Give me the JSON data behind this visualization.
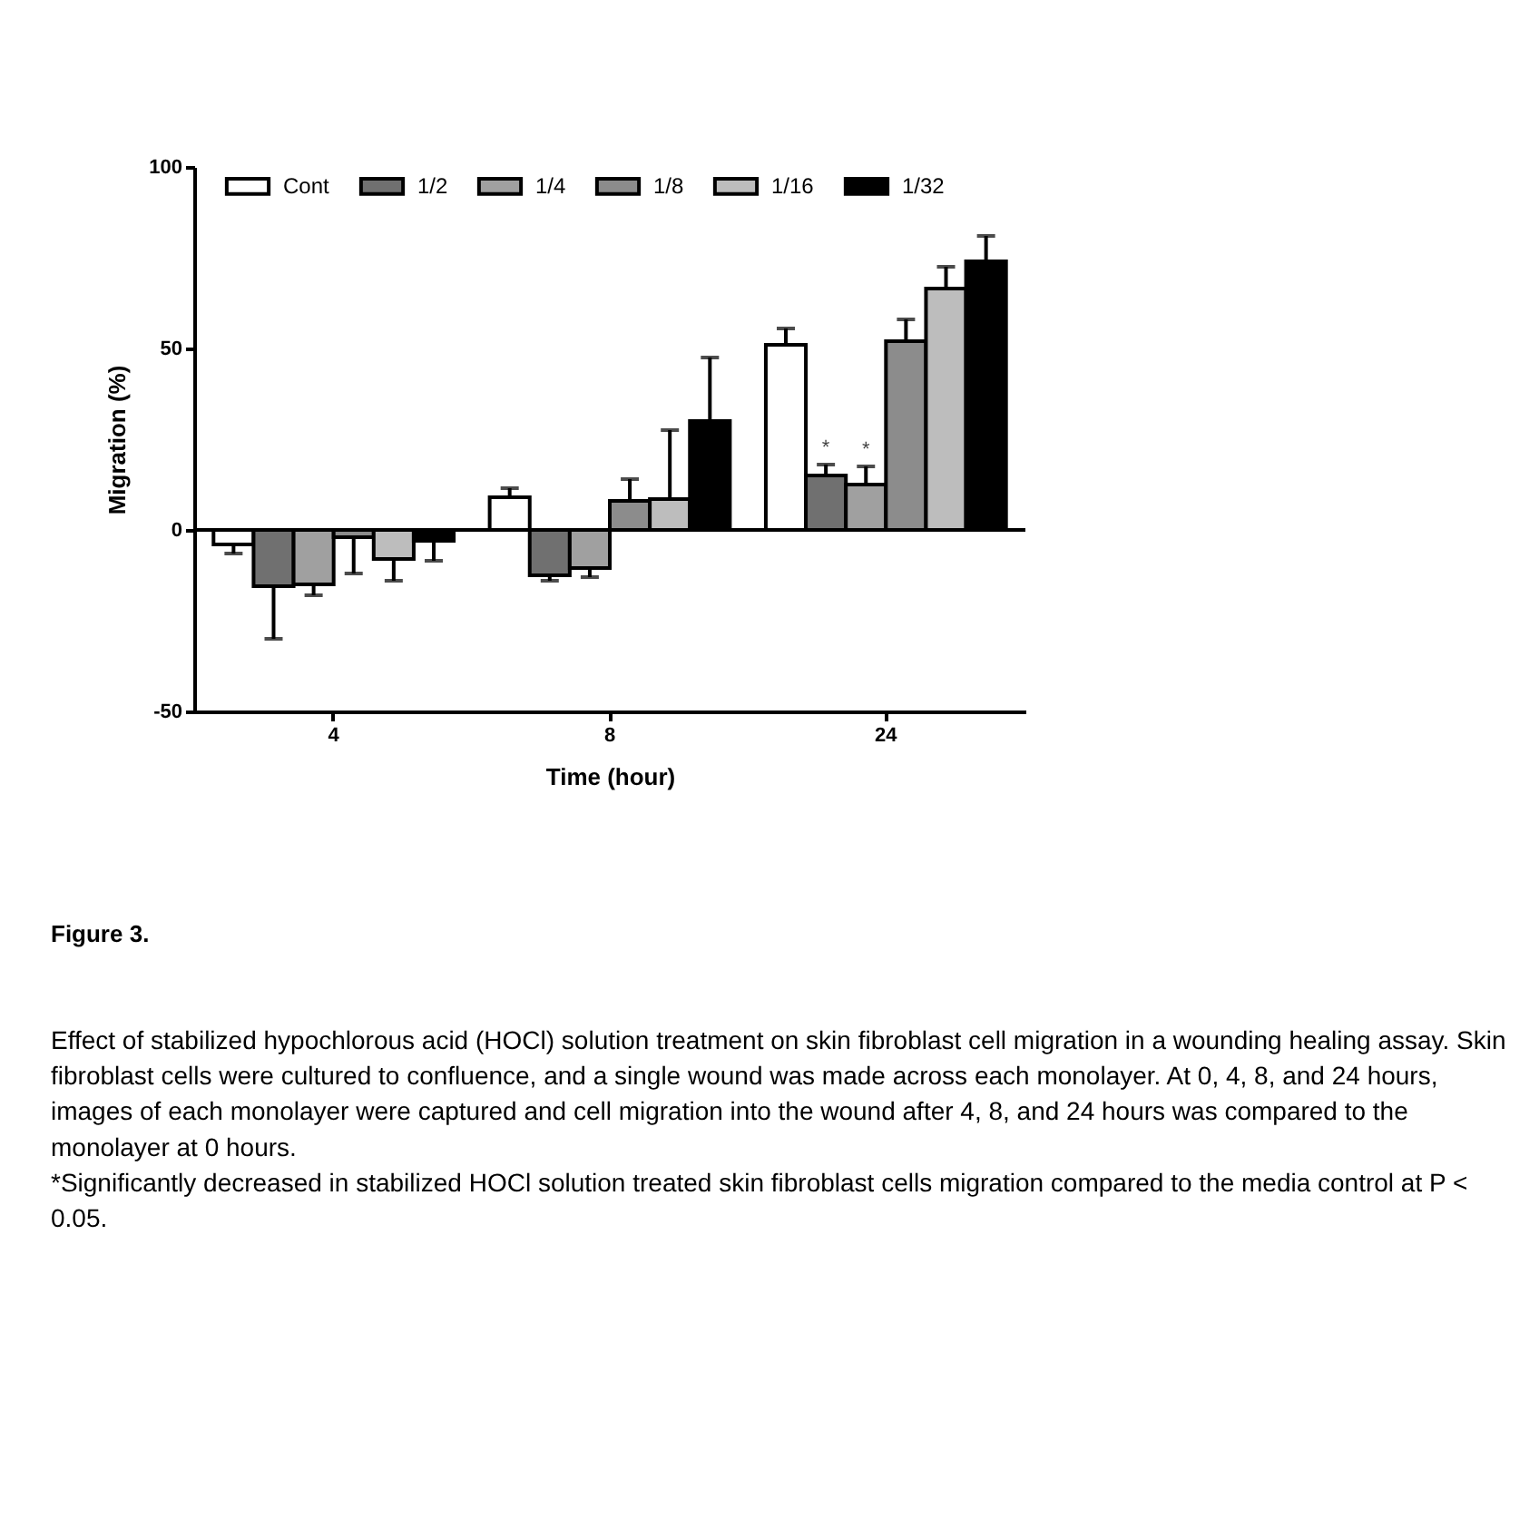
{
  "chart_data": {
    "type": "bar",
    "xlabel": "Time (hour)",
    "ylabel": "Migration (%)",
    "categories": [
      "4",
      "8",
      "24"
    ],
    "series": [
      {
        "name": "Cont",
        "color": "#ffffff",
        "values": [
          -4,
          9,
          51
        ],
        "errors": [
          [
            -6.5,
            -4
          ],
          [
            9,
            11.5
          ],
          [
            51,
            55.5
          ]
        ]
      },
      {
        "name": "1/2",
        "color": "#707070",
        "values": [
          -15.5,
          -12.5,
          15
        ],
        "errors": [
          [
            -30,
            -15.5
          ],
          [
            -14,
            -12.5
          ],
          [
            15,
            18
          ]
        ],
        "value_labels": [
          null,
          null,
          "*"
        ]
      },
      {
        "name": "1/4",
        "color": "#a0a0a0",
        "values": [
          -15,
          -10.5,
          12.5
        ],
        "errors": [
          [
            -18,
            -15
          ],
          [
            -13,
            -10.5
          ],
          [
            12.5,
            17.5
          ]
        ],
        "value_labels": [
          null,
          null,
          "*"
        ]
      },
      {
        "name": "1/8",
        "color": "#8c8c8c",
        "values": [
          -2,
          8,
          52
        ],
        "errors": [
          [
            -12,
            -2
          ],
          [
            8,
            14
          ],
          [
            52,
            58
          ]
        ]
      },
      {
        "name": "1/16",
        "color": "#bdbdbd",
        "values": [
          -8,
          8.5,
          66.5
        ],
        "errors": [
          [
            -14,
            -8
          ],
          [
            8.5,
            27.5
          ],
          [
            66.5,
            72.5
          ]
        ]
      },
      {
        "name": "1/32",
        "color": "#000000",
        "values": [
          -3,
          30,
          74
        ],
        "errors": [
          [
            -8.5,
            -3
          ],
          [
            30,
            47.5
          ],
          [
            74,
            81
          ]
        ]
      }
    ],
    "ylim": [
      -50,
      100
    ],
    "yticks": [
      -50,
      0,
      50,
      100
    ],
    "ref_lines": [
      {
        "axis": "y",
        "value": 0
      }
    ],
    "legend": "top",
    "grid": false,
    "annotations": [
      "Figure 3.",
      "Effect of stabilized hypochlorous acid (HOCl) solution treatment on skin fibroblast cell migration in a wounding healing assay. Skin fibroblast cells were cultured to confluence, and a single wound was made across each monolayer. At 0, 4, 8, and 24 hours, images of each monolayer were captured and cell migration into the wound after 4, 8, and 24 hours was compared to the monolayer at 0 hours.",
      "*Significantly decreased in stabilized HOCl solution treated skin fibroblast cells migration compared to the media control at P < 0.05."
    ]
  }
}
